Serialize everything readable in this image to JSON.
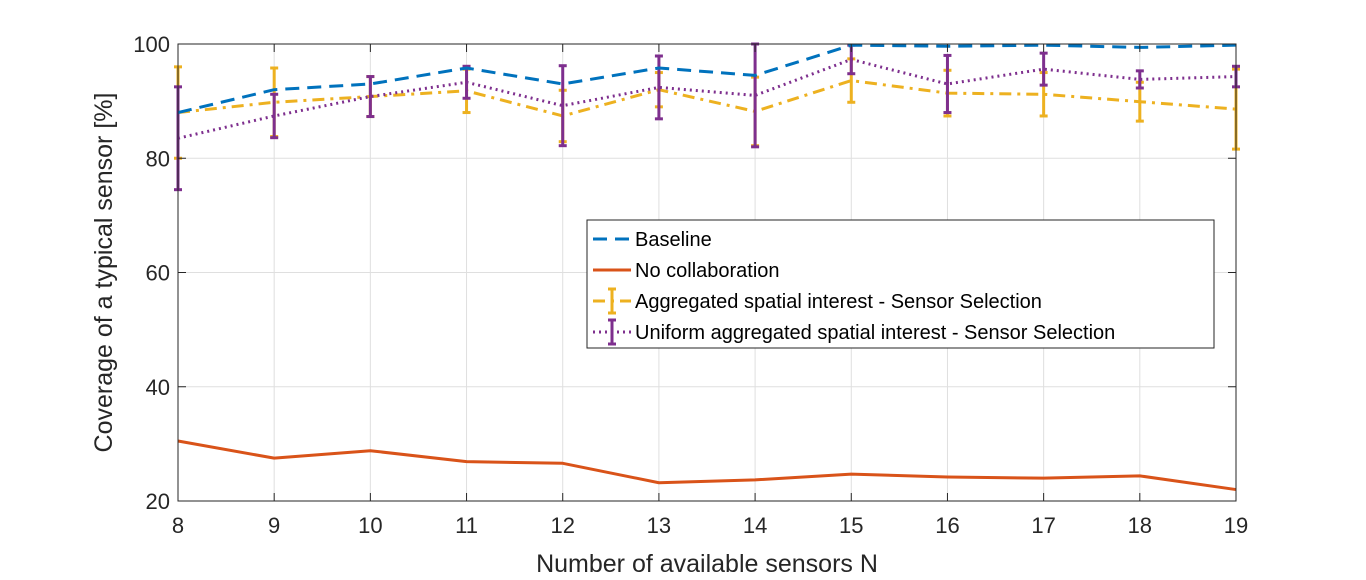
{
  "chart_data": {
    "type": "line",
    "title": "",
    "xlabel": "Number of available sensors N",
    "ylabel": "Coverage of a typical sensor [%]",
    "xlim": [
      8,
      19
    ],
    "ylim": [
      20,
      100
    ],
    "x": [
      8,
      9,
      10,
      11,
      12,
      13,
      14,
      15,
      16,
      17,
      18,
      19
    ],
    "xticks": [
      "8",
      "9",
      "10",
      "11",
      "12",
      "13",
      "14",
      "15",
      "16",
      "17",
      "18",
      "19"
    ],
    "yticks": [
      "20",
      "40",
      "60",
      "80",
      "100"
    ],
    "grid": true,
    "legend_position": "center-right",
    "series": [
      {
        "name": "Baseline",
        "color": "#0072BD",
        "style": "dashed",
        "values": [
          88.0,
          92.0,
          93.0,
          95.8,
          93.0,
          95.8,
          94.5,
          99.8,
          99.6,
          99.8,
          99.4,
          99.8
        ]
      },
      {
        "name": "No collaboration",
        "color": "#D95319",
        "style": "solid",
        "values": [
          30.5,
          27.5,
          28.8,
          26.9,
          26.6,
          23.2,
          23.7,
          24.7,
          24.2,
          24.0,
          24.4,
          22.0
        ]
      },
      {
        "name": "Aggregated spatial interest - Sensor Selection",
        "color": "#EDB120",
        "style": "dashdot",
        "values": [
          88.0,
          89.8,
          90.8,
          91.8,
          87.4,
          92.0,
          88.2,
          93.6,
          91.4,
          91.2,
          89.9,
          88.6
        ],
        "errors": [
          8.0,
          6.0,
          3.5,
          3.8,
          4.5,
          3.0,
          6.0,
          3.8,
          4.0,
          3.8,
          3.4,
          7.0
        ]
      },
      {
        "name": "Uniform aggregated spatial interest - Sensor Selection",
        "color": "#7E2F8E",
        "style": "dotted",
        "values": [
          83.5,
          87.4,
          90.8,
          93.3,
          89.2,
          92.4,
          91.0,
          97.3,
          93.0,
          95.6,
          93.8,
          94.3
        ],
        "errors": [
          9.0,
          3.8,
          3.5,
          2.8,
          7.0,
          5.5,
          9.0,
          2.5,
          5.0,
          2.8,
          1.5,
          1.8
        ]
      }
    ]
  }
}
